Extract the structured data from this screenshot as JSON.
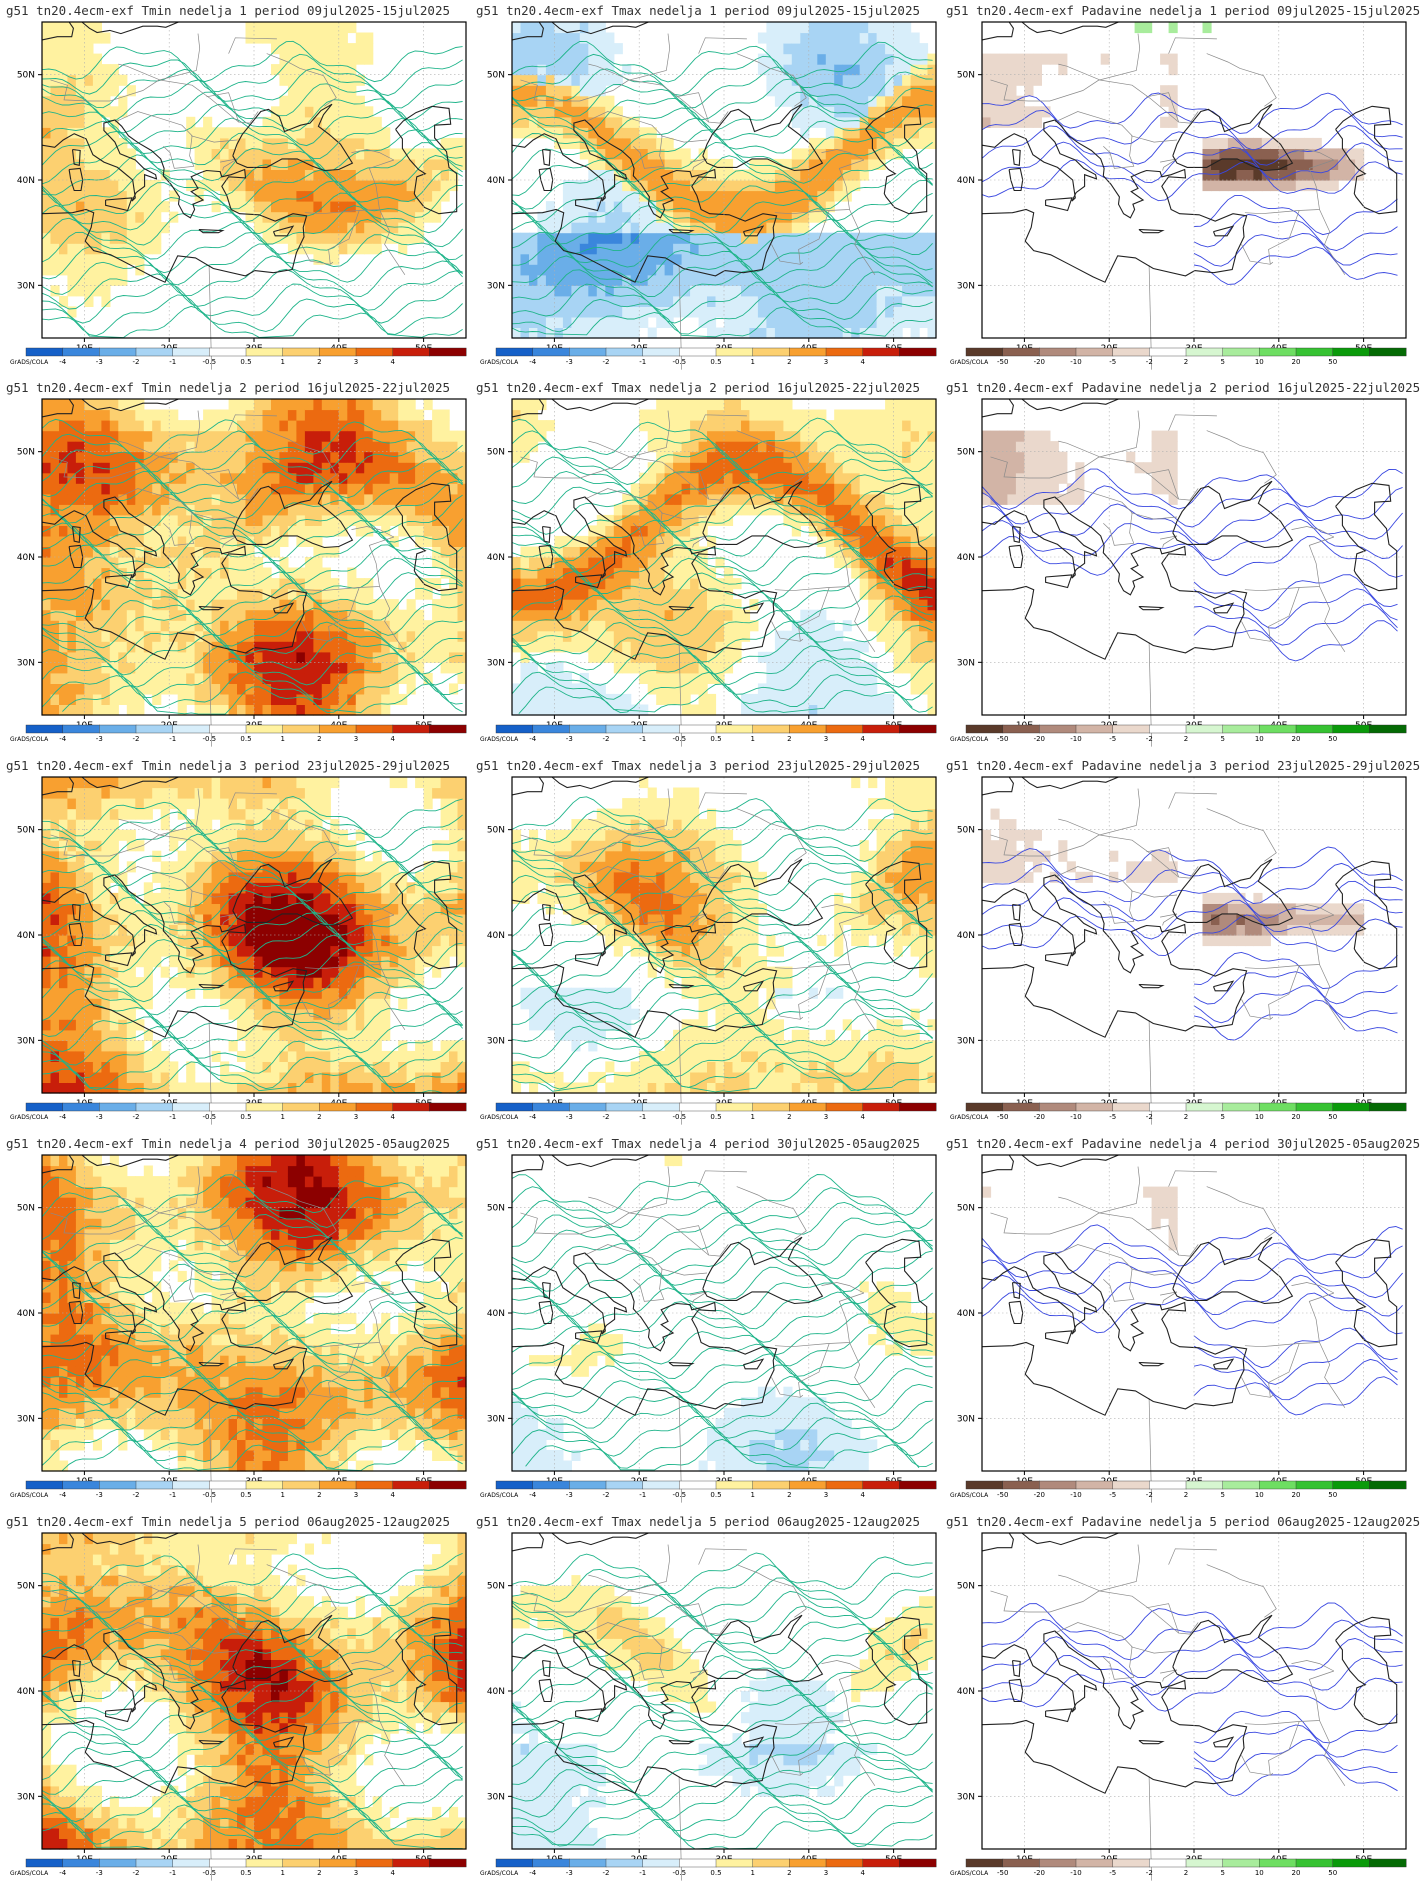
{
  "panels": [
    {
      "title": "g51  tn20.4ecm-exf Tmin nedelja 1 period 09jul2025-15jul2025",
      "var": "tmin",
      "warm": 0.55,
      "cool": 0.25,
      "band": 0.35
    },
    {
      "title": "g51  tn20.4ecm-exf Tmax nedelja 1 period 09jul2025-15jul2025",
      "var": "tmax",
      "warm": 0.3,
      "cool": 0.65,
      "band": 0.75
    },
    {
      "title": "g51  tn20.4ecm-exf Padavine nedelja 1 period 09jul2025-15jul2025",
      "var": "pcp",
      "dry": 0.55,
      "wet": 0.3,
      "band": 0.7
    },
    {
      "title": "g51  tn20.4ecm-exf Tmin nedelja 2 period 16jul2025-22jul2025",
      "var": "tmin",
      "warm": 0.85,
      "cool": 0.08,
      "band": 0.3
    },
    {
      "title": "g51  tn20.4ecm-exf Tmax nedelja 2 period 16jul2025-22jul2025",
      "var": "tmax",
      "warm": 0.55,
      "cool": 0.4,
      "band": 0.7
    },
    {
      "title": "g51  tn20.4ecm-exf Padavine nedelja 2 period 16jul2025-22jul2025",
      "var": "pcp",
      "dry": 0.45,
      "wet": 0.0,
      "band": 0.4
    },
    {
      "title": "g51  tn20.4ecm-exf Tmin nedelja 3 period 23jul2025-29jul2025",
      "var": "tmin",
      "warm": 0.95,
      "cool": 0.03,
      "band": 0.15
    },
    {
      "title": "g51  tn20.4ecm-exf Tmax nedelja 3 period 23jul2025-29jul2025",
      "var": "tmax",
      "warm": 0.6,
      "cool": 0.35,
      "band": 0.25
    },
    {
      "title": "g51  tn20.4ecm-exf Padavine nedelja 3 period 23jul2025-29jul2025",
      "var": "pcp",
      "dry": 0.4,
      "wet": 0.0,
      "band": 0.65
    },
    {
      "title": "g51  tn20.4ecm-exf Tmin nedelja 4 period 30jul2025-05aug2025",
      "var": "tmin",
      "warm": 0.9,
      "cool": 0.0,
      "band": 0.15
    },
    {
      "title": "g51  tn20.4ecm-exf Tmax nedelja 4 period 30jul2025-05aug2025",
      "var": "tmax",
      "warm": 0.35,
      "cool": 0.4,
      "band": 0.2
    },
    {
      "title": "g51  tn20.4ecm-exf Padavine nedelja 4 period 30jul2025-05aug2025",
      "var": "pcp",
      "dry": 0.35,
      "wet": 0.1,
      "band": 0.15
    },
    {
      "title": "g51  tn20.4ecm-exf Tmin nedelja 5 period 06aug2025-12aug2025",
      "var": "tmin",
      "warm": 0.9,
      "cool": 0.0,
      "band": 0.2
    },
    {
      "title": "g51  tn20.4ecm-exf Tmax nedelja 5 period 06aug2025-12aug2025",
      "var": "tmax",
      "warm": 0.3,
      "cool": 0.45,
      "band": 0.35
    },
    {
      "title": "g51  tn20.4ecm-exf Padavine nedelja 5 period 06aug2025-12aug2025",
      "var": "pcp",
      "dry": 0.25,
      "wet": 0.1,
      "band": 0.3
    }
  ],
  "axes": {
    "x_ticks": [
      "10E",
      "20E",
      "30E",
      "40E",
      "50E"
    ],
    "y_ticks": [
      "50N",
      "40N",
      "30N"
    ]
  },
  "colorbar_temp": {
    "credit": "GrADS/COLA",
    "labels": [
      "-4",
      "-3",
      "-2",
      "-1",
      "-0.5",
      "0.5",
      "1",
      "2",
      "3",
      "4"
    ],
    "colors": [
      "#1560c8",
      "#3a86dc",
      "#6aaee8",
      "#a8d4f4",
      "#d8eefa",
      "#ffffff",
      "#fff2a0",
      "#fcd070",
      "#f8a030",
      "#ec6a10",
      "#c81e0a",
      "#8c0000"
    ]
  },
  "colorbar_pcp": {
    "credit": "GrADS/COLA",
    "labels": [
      "-50",
      "-20",
      "-10",
      "-5",
      "-2",
      "2",
      "5",
      "10",
      "20",
      "50"
    ],
    "colors": [
      "#5a3a2a",
      "#8a6050",
      "#b08a7c",
      "#d2b4a6",
      "#ead8cc",
      "#ffffff",
      "#d6f6d0",
      "#a8ec9c",
      "#6ede62",
      "#36c232",
      "#0a9a0a",
      "#046a04"
    ]
  },
  "colors": {
    "contour_temp": "#1fb48a",
    "contour_pcp": "#3a48e0",
    "coast": "#222222",
    "border": "#8a8a8a",
    "grid": "#b0b0b0"
  }
}
